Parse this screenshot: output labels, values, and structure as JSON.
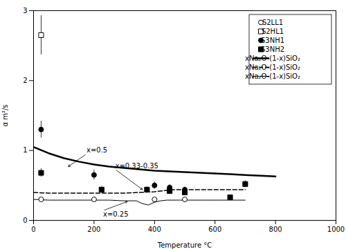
{
  "chart_data": {
    "type": "line",
    "xlabel": "Temperature °C",
    "ylabel": "α m²/s",
    "xlim": [
      0,
      1000
    ],
    "ylim": [
      0,
      3
    ],
    "xticks": [
      0,
      200,
      400,
      600,
      800,
      1000
    ],
    "yticks": [
      0,
      1,
      2,
      3
    ],
    "grid": false,
    "legend": "upper right",
    "series": [
      {
        "name": "S2LL1",
        "type": "scatter",
        "marker": "circle-open",
        "color": "black",
        "x": [
          25,
          200,
          400,
          500
        ],
        "values": [
          0.3,
          0.3,
          0.3,
          0.3
        ],
        "yerr": [
          0.02,
          0.02,
          0.02,
          0.02
        ]
      },
      {
        "name": "S2HL1",
        "type": "scatter",
        "marker": "square-open",
        "color": "black",
        "x": [
          25
        ],
        "values": [
          2.65
        ],
        "yerr": [
          0.28
        ]
      },
      {
        "name": "S3NH1",
        "type": "scatter",
        "marker": "circle",
        "color": "black",
        "x": [
          25,
          200,
          400,
          450,
          500
        ],
        "values": [
          1.3,
          0.65,
          0.5,
          0.47,
          0.44
        ],
        "yerr": [
          0.12,
          0.07,
          0.05,
          0.04,
          0.04
        ]
      },
      {
        "name": "S3NH2",
        "type": "scatter",
        "marker": "square",
        "color": "black",
        "x": [
          25,
          225,
          375,
          450,
          500,
          650,
          700
        ],
        "values": [
          0.68,
          0.44,
          0.44,
          0.42,
          0.4,
          0.33,
          0.52
        ],
        "yerr": [
          0.06,
          0.05,
          0.04,
          0.04,
          0.04,
          0.03,
          0.05
        ]
      },
      {
        "name": "xNa₂O-(1-x)SiO₂",
        "type": "line",
        "line_style": "solid",
        "color": "black",
        "x": [
          0,
          50,
          100,
          150,
          200,
          250,
          300,
          350,
          400,
          450,
          500,
          550,
          600,
          650,
          700,
          750,
          800
        ],
        "values": [
          1.05,
          0.96,
          0.89,
          0.84,
          0.8,
          0.77,
          0.75,
          0.73,
          0.71,
          0.7,
          0.69,
          0.68,
          0.67,
          0.66,
          0.65,
          0.64,
          0.63
        ]
      },
      {
        "name": "xNa₂O-(1-x)SiO₂",
        "type": "line",
        "line_style": "dashed",
        "color": "black",
        "x": [
          0,
          50,
          100,
          150,
          200,
          250,
          300,
          350,
          400,
          420,
          440,
          460,
          480,
          500,
          520,
          540,
          560,
          600,
          650,
          700
        ],
        "values": [
          0.4,
          0.39,
          0.39,
          0.39,
          0.39,
          0.39,
          0.39,
          0.4,
          0.41,
          0.42,
          0.43,
          0.44,
          0.44,
          0.44,
          0.44,
          0.44,
          0.44,
          0.44,
          0.44,
          0.44
        ]
      },
      {
        "name": "xNa₂O-(1-x)SiO₂",
        "type": "line",
        "line_style": "solid",
        "color": "black",
        "x": [
          0,
          50,
          100,
          150,
          200,
          250,
          300,
          340,
          360,
          380,
          400,
          420,
          440,
          460,
          480,
          500,
          550,
          600,
          650,
          700
        ],
        "values": [
          0.3,
          0.29,
          0.29,
          0.29,
          0.29,
          0.29,
          0.28,
          0.28,
          0.24,
          0.22,
          0.26,
          0.28,
          0.29,
          0.29,
          0.29,
          0.29,
          0.29,
          0.29,
          0.29,
          0.29
        ]
      }
    ],
    "annotations": [
      {
        "text": "x=0.5",
        "x": 175,
        "y": 0.95,
        "arrow_x": 115,
        "arrow_y": 0.77
      },
      {
        "text": "x=0.33-0.35",
        "x": 270,
        "y": 0.73,
        "arrow_x": 360,
        "arrow_y": 0.44
      },
      {
        "text": "x=0.25",
        "x": 230,
        "y": 0.14,
        "arrow_x": 310,
        "arrow_y": 0.27
      }
    ]
  }
}
